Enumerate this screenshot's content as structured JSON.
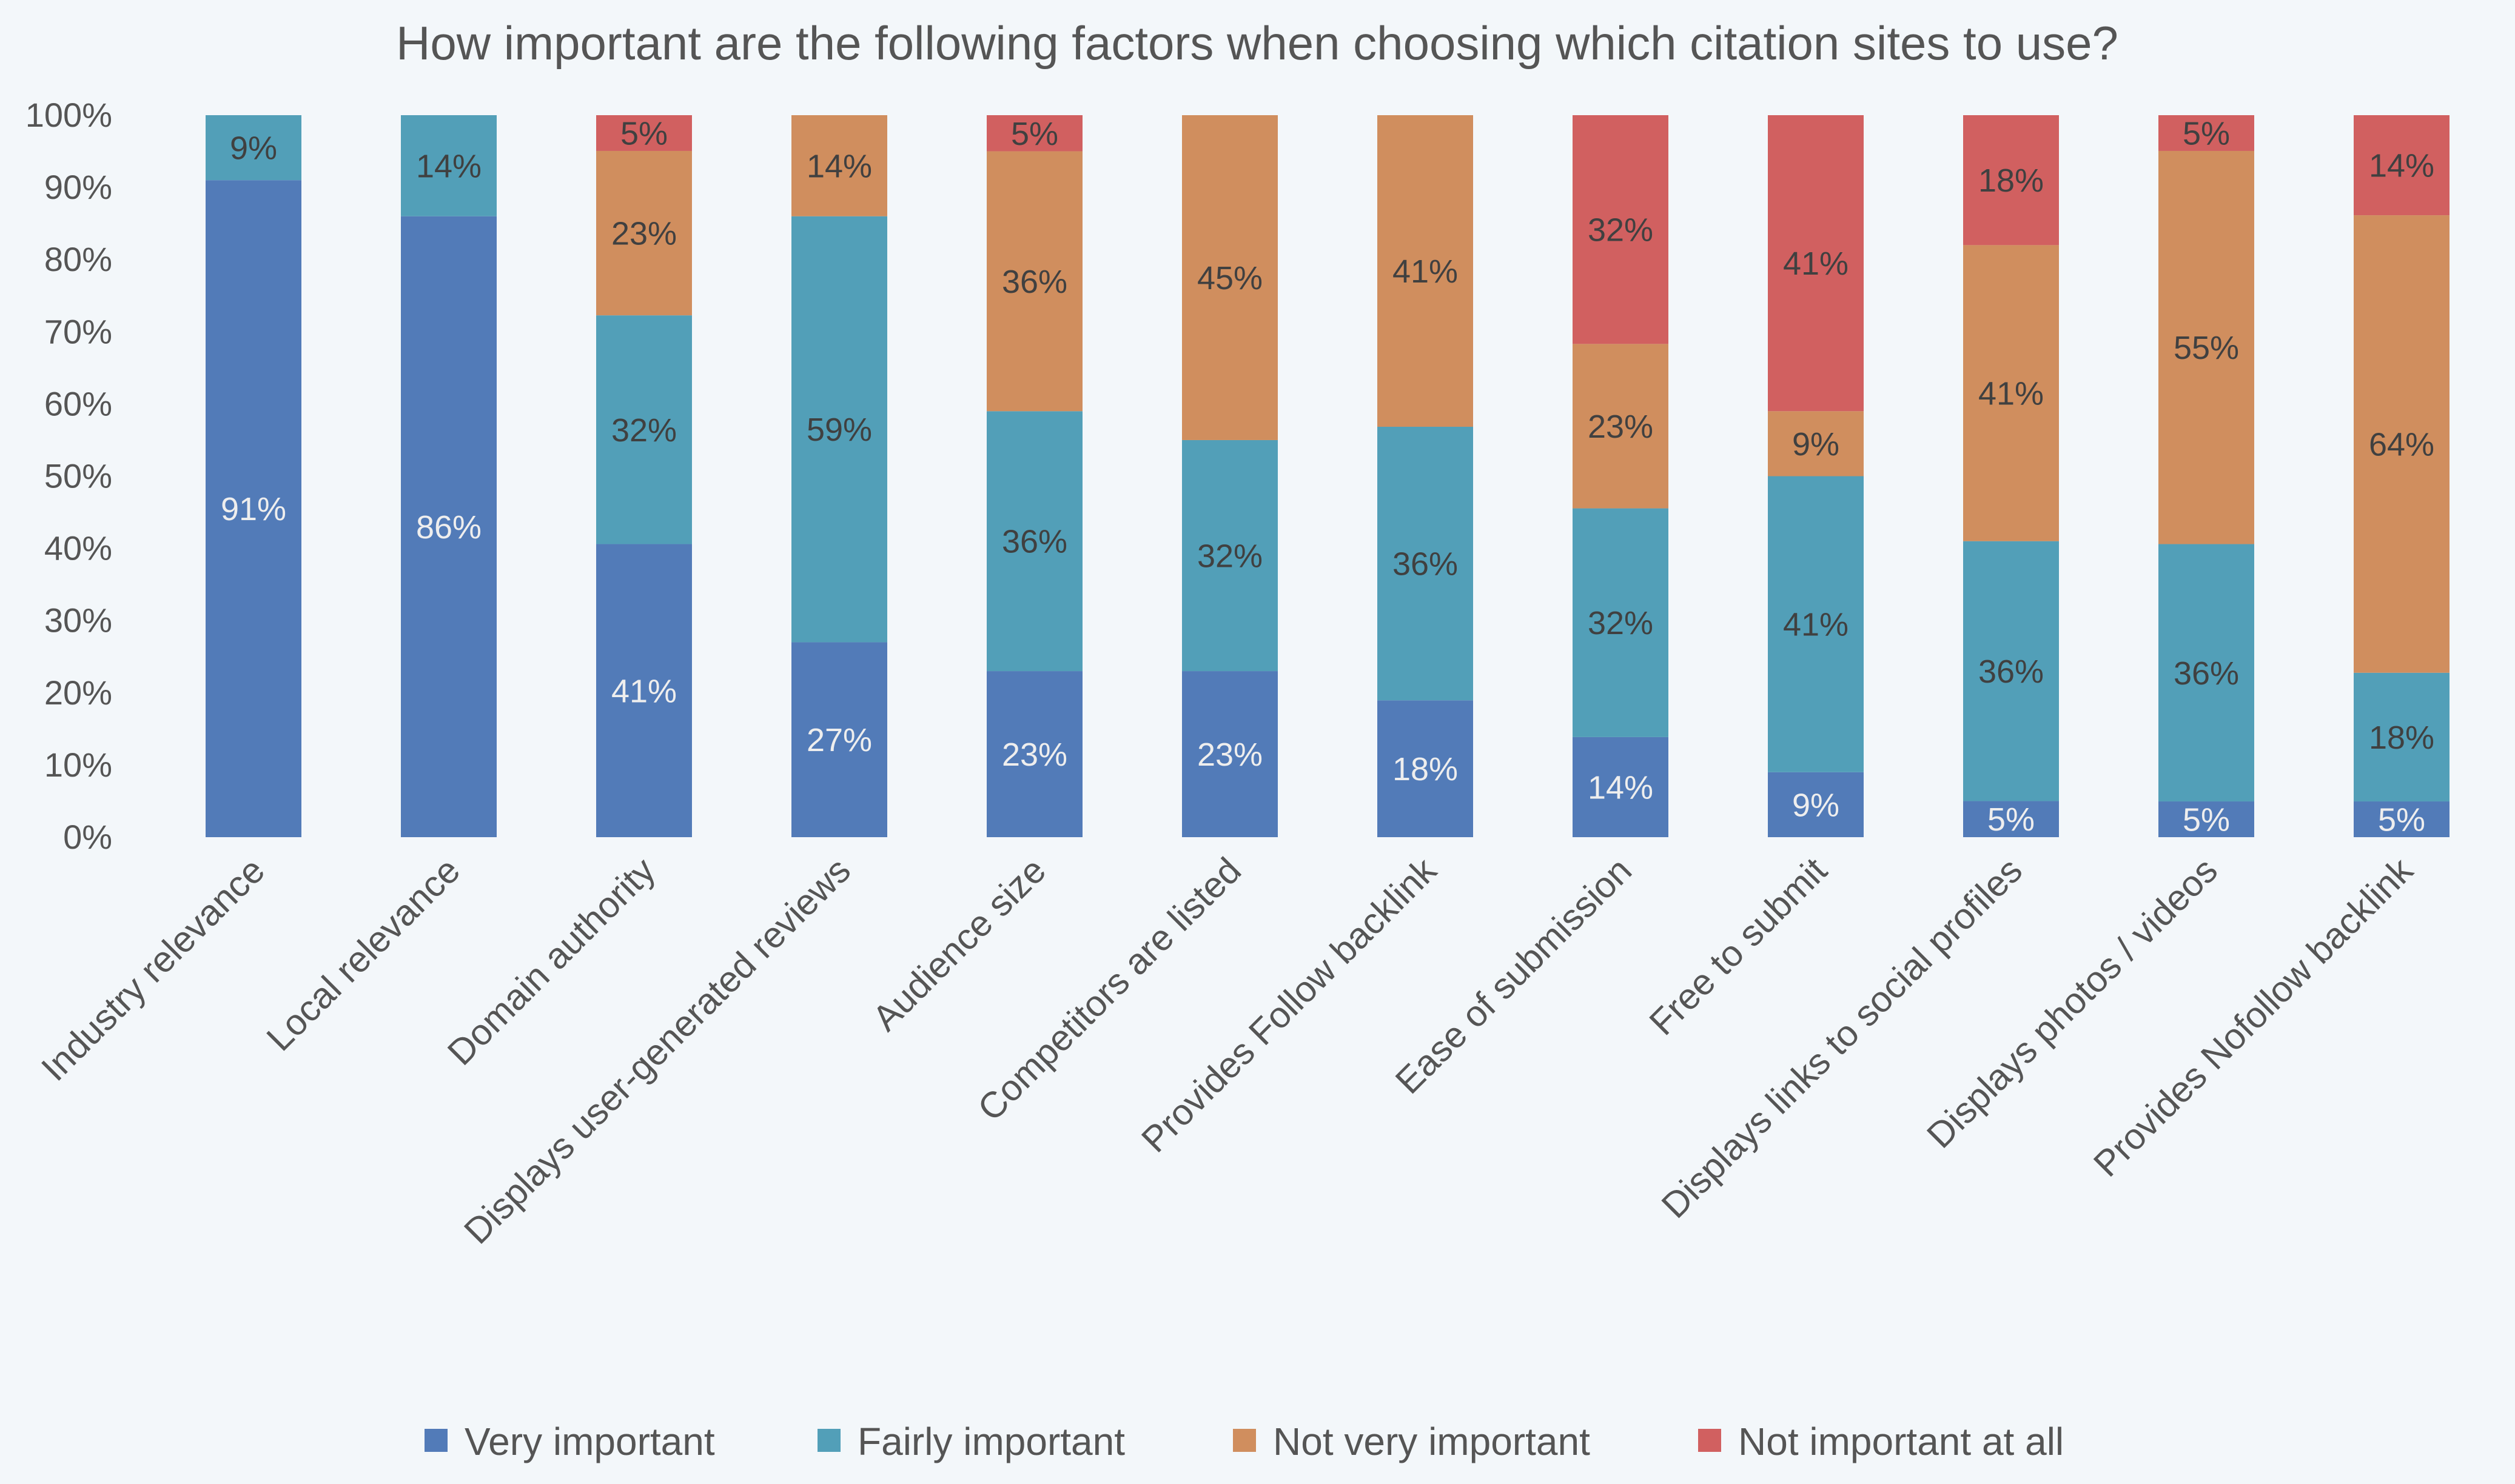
{
  "chart_data": {
    "type": "bar",
    "stacked": "percent",
    "title": "How important are the following factors when choosing which citation sites to use?",
    "xlabel": "",
    "ylabel": "",
    "ylim": [
      0,
      100
    ],
    "yticks": [
      "0%",
      "10%",
      "20%",
      "30%",
      "40%",
      "50%",
      "60%",
      "70%",
      "80%",
      "90%",
      "100%"
    ],
    "grid": false,
    "legend_position": "bottom",
    "categories": [
      "Industry relevance",
      "Local relevance",
      "Domain authority",
      "Displays user-generated reviews",
      "Audience size",
      "Competitors are listed",
      "Provides Follow backlink",
      "Ease of submission",
      "Free to submit",
      "Displays links to social profiles",
      "Displays photos / videos",
      "Provides Nofollow backlink"
    ],
    "series": [
      {
        "name": "Very important",
        "color": "#527bb8",
        "label_color": "#eeeeee",
        "values": [
          91,
          86,
          41,
          27,
          23,
          23,
          18,
          14,
          9,
          5,
          5,
          5
        ]
      },
      {
        "name": "Fairly important",
        "color": "#529fb8",
        "label_color": "#404040",
        "values": [
          9,
          14,
          32,
          59,
          36,
          32,
          36,
          32,
          41,
          36,
          36,
          18
        ]
      },
      {
        "name": "Not very important",
        "color": "#d08e5e",
        "label_color": "#404040",
        "values": [
          0,
          0,
          23,
          14,
          36,
          45,
          41,
          23,
          9,
          41,
          55,
          64
        ]
      },
      {
        "name": "Not important at all",
        "color": "#d16060",
        "label_color": "#404040",
        "values": [
          0,
          0,
          5,
          0,
          5,
          0,
          0,
          32,
          41,
          18,
          5,
          14
        ]
      }
    ]
  }
}
